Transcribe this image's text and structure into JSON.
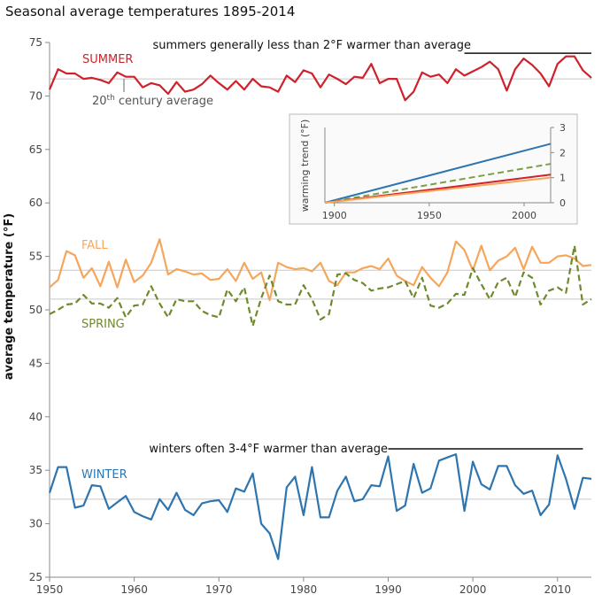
{
  "chart_data": {
    "type": "line",
    "title": "Seasonal average temperatures 1895-2014",
    "ylabel": "average temperature (°F)",
    "xlabel": "",
    "xlim": [
      1950,
      2014
    ],
    "ylim": [
      25,
      75
    ],
    "x_ticks": [
      1950,
      1960,
      1970,
      1980,
      1990,
      2000,
      2010
    ],
    "y_ticks": [
      25,
      30,
      35,
      40,
      45,
      50,
      55,
      60,
      65,
      70,
      75
    ],
    "grid": false,
    "x": [
      1950,
      1951,
      1952,
      1953,
      1954,
      1955,
      1956,
      1957,
      1958,
      1959,
      1960,
      1961,
      1962,
      1963,
      1964,
      1965,
      1966,
      1967,
      1968,
      1969,
      1970,
      1971,
      1972,
      1973,
      1974,
      1975,
      1976,
      1977,
      1978,
      1979,
      1980,
      1981,
      1982,
      1983,
      1984,
      1985,
      1986,
      1987,
      1988,
      1989,
      1990,
      1991,
      1992,
      1993,
      1994,
      1995,
      1996,
      1997,
      1998,
      1999,
      2000,
      2001,
      2002,
      2003,
      2004,
      2005,
      2006,
      2007,
      2008,
      2009,
      2010,
      2011,
      2012,
      2013,
      2014
    ],
    "series": [
      {
        "name": "SUMMER",
        "color": "#d0202a",
        "dash": "solid",
        "average": 71.6,
        "values": [
          70.6,
          72.5,
          72.1,
          72.1,
          71.6,
          71.7,
          71.5,
          71.2,
          72.2,
          71.8,
          71.8,
          70.8,
          71.2,
          71.0,
          70.2,
          71.3,
          70.4,
          70.6,
          71.1,
          71.9,
          71.2,
          70.6,
          71.4,
          70.6,
          71.6,
          70.9,
          70.8,
          70.4,
          71.9,
          71.3,
          72.4,
          72.1,
          70.8,
          72.0,
          71.6,
          71.1,
          71.8,
          71.7,
          73.0,
          71.2,
          71.6,
          71.6,
          69.6,
          70.4,
          72.2,
          71.8,
          72.0,
          71.2,
          72.5,
          71.9,
          72.3,
          72.7,
          73.2,
          72.5,
          70.5,
          72.5,
          73.5,
          72.9,
          72.1,
          70.9,
          73.0,
          73.7,
          73.7,
          72.4,
          71.7
        ]
      },
      {
        "name": "FALL",
        "color": "#f5a65b",
        "dash": "solid",
        "average": 53.7,
        "values": [
          52.1,
          52.8,
          55.5,
          55.1,
          53.0,
          53.9,
          52.2,
          54.5,
          52.1,
          54.7,
          52.6,
          53.2,
          54.4,
          56.6,
          53.3,
          53.8,
          53.6,
          53.3,
          53.4,
          52.8,
          52.9,
          53.8,
          52.7,
          54.4,
          52.9,
          53.5,
          50.9,
          54.4,
          54.0,
          53.8,
          53.9,
          53.6,
          54.4,
          52.7,
          52.3,
          53.5,
          53.5,
          53.9,
          54.1,
          53.8,
          54.8,
          53.2,
          52.7,
          52.3,
          54.0,
          53.0,
          52.2,
          53.5,
          56.4,
          55.6,
          53.7,
          56.0,
          53.7,
          54.6,
          55.0,
          55.8,
          53.8,
          55.9,
          54.4,
          54.4,
          55.0,
          55.1,
          54.8,
          54.1,
          54.2
        ]
      },
      {
        "name": "SPRING",
        "color": "#6e8a2c",
        "dash": "dashed",
        "average": 51.0,
        "values": [
          49.6,
          50.0,
          50.5,
          50.6,
          51.4,
          50.6,
          50.6,
          50.2,
          51.1,
          49.3,
          50.4,
          50.5,
          52.2,
          50.6,
          49.3,
          51.0,
          50.8,
          50.8,
          49.9,
          49.5,
          49.3,
          51.9,
          50.8,
          52.1,
          48.5,
          51.1,
          53.2,
          50.8,
          50.5,
          50.5,
          52.3,
          51.0,
          49.1,
          49.6,
          53.3,
          53.4,
          52.8,
          52.5,
          51.8,
          52.0,
          52.1,
          52.4,
          52.7,
          51.1,
          53.0,
          50.4,
          50.2,
          50.6,
          51.5,
          51.4,
          53.9,
          52.4,
          51.0,
          52.6,
          53.0,
          51.2,
          53.5,
          53.0,
          50.5,
          51.8,
          52.1,
          51.6,
          56.0,
          50.5,
          51.0
        ]
      },
      {
        "name": "WINTER",
        "color": "#2e75b0",
        "dash": "solid",
        "average": 32.3,
        "values": [
          32.9,
          35.3,
          35.3,
          31.5,
          31.7,
          33.6,
          33.5,
          31.4,
          32.0,
          32.6,
          31.1,
          30.7,
          30.4,
          32.3,
          31.3,
          32.9,
          31.3,
          30.8,
          31.9,
          32.1,
          32.2,
          31.1,
          33.3,
          33.0,
          34.7,
          30.0,
          29.1,
          26.7,
          33.4,
          34.4,
          30.8,
          35.3,
          30.6,
          30.6,
          33.1,
          34.4,
          32.1,
          32.3,
          33.6,
          33.5,
          36.3,
          31.2,
          31.7,
          35.6,
          32.9,
          33.3,
          35.9,
          36.2,
          36.5,
          31.2,
          35.8,
          33.7,
          33.2,
          35.4,
          35.4,
          33.6,
          32.8,
          33.1,
          30.8,
          31.8,
          36.4,
          34.2,
          31.4,
          34.3,
          34.2
        ]
      }
    ],
    "series_labels": {
      "SUMMER": "SUMMER",
      "FALL": "FALL",
      "SPRING": "SPRING",
      "WINTER": "WINTER"
    },
    "annotations": {
      "summer": {
        "text": "summers generally less than 2°F warmer than average",
        "x_start": 1999,
        "x_end": 2014,
        "y": 74
      },
      "winter": {
        "text": "winters often 3-4°F warmer than average",
        "x_start": 1990,
        "x_end": 2013,
        "y": 37
      },
      "average_label_main": "20",
      "average_label_sup": "th",
      "average_label_rest": " century average"
    },
    "inset": {
      "type": "line",
      "ylabel": "warming trend (°F)",
      "xlim": [
        1895,
        2014
      ],
      "ylim": [
        0,
        3
      ],
      "x_ticks": [
        1900,
        1950,
        2000
      ],
      "y_ticks": [
        0,
        1,
        2,
        3
      ],
      "series": [
        {
          "name": "WINTER",
          "color": "#2e75b0",
          "dash": "solid",
          "x": [
            1895,
            2014
          ],
          "y": [
            0,
            2.35
          ]
        },
        {
          "name": "SPRING",
          "color": "#7aa043",
          "dash": "dashed",
          "x": [
            1895,
            2014
          ],
          "y": [
            0,
            1.55
          ]
        },
        {
          "name": "SUMMER",
          "color": "#d0202a",
          "dash": "solid",
          "x": [
            1895,
            2014
          ],
          "y": [
            0,
            1.12
          ]
        },
        {
          "name": "FALL",
          "color": "#f5a65b",
          "dash": "solid",
          "x": [
            1895,
            2014
          ],
          "y": [
            0,
            1.0
          ]
        }
      ]
    }
  }
}
